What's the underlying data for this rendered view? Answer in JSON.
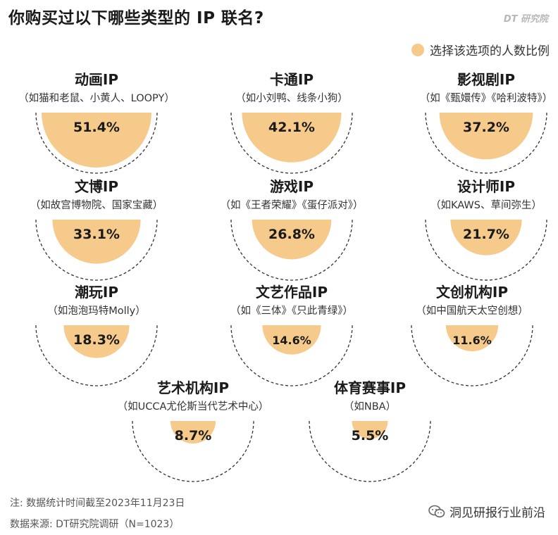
{
  "title": "你购买过以下哪些类型的 IP 联名?",
  "brand": "DT 研究院",
  "legend": {
    "label": "选择该选项的人数比例"
  },
  "colors": {
    "fill": "#f6ca8b",
    "outline": "#333333"
  },
  "chart_data": {
    "type": "semi-circle-proportional",
    "title": "你购买过以下哪些类型的 IP 联名?",
    "unit": "%",
    "items": [
      {
        "name": "动画IP",
        "sub": "（如猫和老鼠、小黄人、LOOPY）",
        "value": 51.4,
        "label": "51.4%"
      },
      {
        "name": "卡通IP",
        "sub": "（如小刘鸭、线条小狗）",
        "value": 42.1,
        "label": "42.1%"
      },
      {
        "name": "影视剧IP",
        "sub": "（如《甄嬛传》《哈利波特》）",
        "value": 37.2,
        "label": "37.2%"
      },
      {
        "name": "文博IP",
        "sub": "（如故宫博物院、国家宝藏）",
        "value": 33.1,
        "label": "33.1%"
      },
      {
        "name": "游戏IP",
        "sub": "（如《王者荣耀》《蛋仔派对》）",
        "value": 26.8,
        "label": "26.8%"
      },
      {
        "name": "设计师IP",
        "sub": "（如KAWS、草间弥生）",
        "value": 21.7,
        "label": "21.7%"
      },
      {
        "name": "潮玩IP",
        "sub": "（如泡泡玛特Molly）",
        "value": 18.3,
        "label": "18.3%"
      },
      {
        "name": "文艺作品IP",
        "sub": "（如《三体》《只此青绿》）",
        "value": 14.6,
        "label": "14.6%"
      },
      {
        "name": "文创机构IP",
        "sub": "（如中国航天太空创想）",
        "value": 11.6,
        "label": "11.6%"
      },
      {
        "name": "艺术机构IP",
        "sub": "（如UCCA尤伦斯当代艺术中心）",
        "value": 8.7,
        "label": "8.7%"
      },
      {
        "name": "体育赛事IP",
        "sub": "（如NBA）",
        "value": 5.5,
        "label": "5.5%"
      }
    ]
  },
  "footer": {
    "note": "注: 数据统计时间截至2023年11月23日",
    "source": "数据来源: DT研究院调研（N=1023）"
  },
  "watermark": {
    "text": "洞见研报行业前沿",
    "icon": "wechat-icon"
  }
}
